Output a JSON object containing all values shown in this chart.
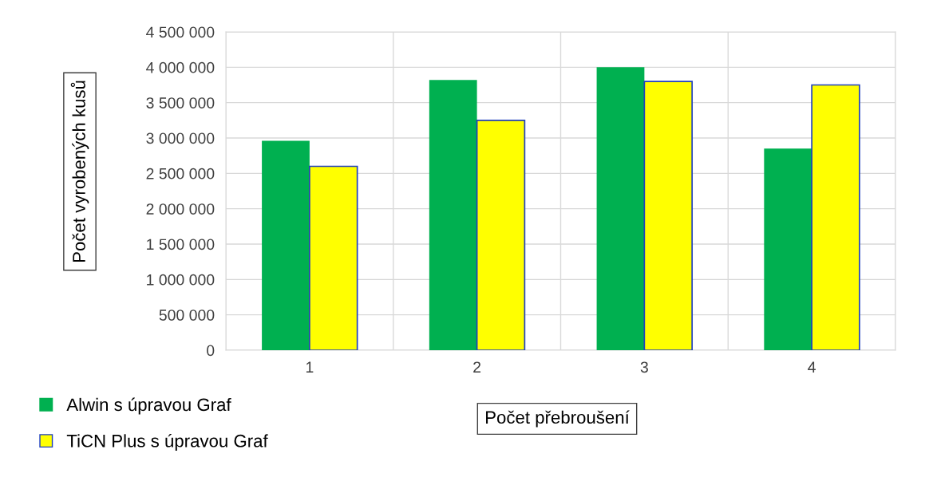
{
  "chart_data": {
    "type": "bar",
    "xlabel": "Počet přebroušení",
    "ylabel": "Počet vyrobených kusů",
    "categories": [
      "1",
      "2",
      "3",
      "4"
    ],
    "series": [
      {
        "name": "Alwin s úpravou Graf",
        "color": "#00b050",
        "values": [
          2960000,
          3820000,
          4000000,
          2850000
        ]
      },
      {
        "name": "TiCN Plus s úpravou Graf",
        "color": "#ffff00",
        "values": [
          2600000,
          3250000,
          3800000,
          3750000
        ]
      }
    ],
    "ylim": [
      0,
      4500000
    ],
    "yticks": [
      0,
      {
        "value": 500000,
        "label": "500 000"
      },
      {
        "value": 1000000,
        "label": "1 000 000"
      },
      {
        "value": 1500000,
        "label": "1 500 000"
      },
      {
        "value": 2000000,
        "label": "2 000 000"
      },
      {
        "value": 2500000,
        "label": "2 500 000"
      },
      {
        "value": 3000000,
        "label": "3 000 000"
      },
      {
        "value": 3500000,
        "label": "3 500 000"
      },
      {
        "value": 4000000,
        "label": "4 000 000"
      },
      {
        "value": 4500000,
        "label": "4 500 000"
      }
    ],
    "grid": true,
    "legend": "bottom left"
  }
}
